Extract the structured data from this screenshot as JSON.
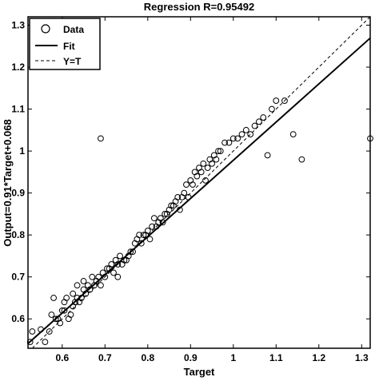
{
  "chart_data": {
    "type": "scatter",
    "title": "Regression R=0.95492",
    "xlabel": "Target",
    "ylabel": "Output=0.91*Target+0.068",
    "xlim": [
      0.52,
      1.32
    ],
    "ylim": [
      0.53,
      1.32
    ],
    "xticks": [
      0.6,
      0.7,
      0.8,
      0.9,
      1,
      1.1,
      1.2,
      1.3
    ],
    "yticks": [
      0.6,
      0.7,
      0.8,
      0.9,
      1,
      1.1,
      1.2,
      1.3
    ],
    "xtick_labels": [
      "0.6",
      "0.7",
      "0.8",
      "0.9",
      "1",
      "1.1",
      "1.2",
      "1.3"
    ],
    "ytick_labels": [
      "0.6",
      "0.7",
      "0.8",
      "0.9",
      "1",
      "1.1",
      "1.2",
      "1.3"
    ],
    "grid": false,
    "legend": {
      "placement": "top-left",
      "entries": [
        {
          "label": "Data",
          "style": "circle"
        },
        {
          "label": "Fit",
          "style": "solid"
        },
        {
          "label": "Y=T",
          "style": "dashed"
        }
      ]
    },
    "fit": {
      "slope": 0.91,
      "intercept": 0.068
    },
    "series": [
      {
        "name": "Data",
        "points": [
          [
            0.525,
            0.545
          ],
          [
            0.53,
            0.57
          ],
          [
            0.55,
            0.575
          ],
          [
            0.56,
            0.545
          ],
          [
            0.57,
            0.57
          ],
          [
            0.575,
            0.61
          ],
          [
            0.58,
            0.65
          ],
          [
            0.585,
            0.6
          ],
          [
            0.59,
            0.6
          ],
          [
            0.595,
            0.59
          ],
          [
            0.6,
            0.62
          ],
          [
            0.605,
            0.62
          ],
          [
            0.605,
            0.64
          ],
          [
            0.61,
            0.65
          ],
          [
            0.615,
            0.6
          ],
          [
            0.62,
            0.61
          ],
          [
            0.625,
            0.63
          ],
          [
            0.625,
            0.66
          ],
          [
            0.63,
            0.64
          ],
          [
            0.635,
            0.65
          ],
          [
            0.635,
            0.68
          ],
          [
            0.64,
            0.64
          ],
          [
            0.645,
            0.65
          ],
          [
            0.65,
            0.67
          ],
          [
            0.65,
            0.69
          ],
          [
            0.655,
            0.66
          ],
          [
            0.66,
            0.68
          ],
          [
            0.665,
            0.67
          ],
          [
            0.67,
            0.7
          ],
          [
            0.675,
            0.68
          ],
          [
            0.68,
            0.69
          ],
          [
            0.685,
            0.7
          ],
          [
            0.69,
            0.68
          ],
          [
            0.695,
            0.71
          ],
          [
            0.7,
            0.7
          ],
          [
            0.705,
            0.72
          ],
          [
            0.71,
            0.72
          ],
          [
            0.715,
            0.73
          ],
          [
            0.72,
            0.71
          ],
          [
            0.725,
            0.74
          ],
          [
            0.73,
            0.7
          ],
          [
            0.73,
            0.73
          ],
          [
            0.735,
            0.75
          ],
          [
            0.74,
            0.73
          ],
          [
            0.745,
            0.74
          ],
          [
            0.75,
            0.74
          ],
          [
            0.755,
            0.75
          ],
          [
            0.76,
            0.76
          ],
          [
            0.765,
            0.76
          ],
          [
            0.77,
            0.78
          ],
          [
            0.775,
            0.79
          ],
          [
            0.78,
            0.8
          ],
          [
            0.785,
            0.78
          ],
          [
            0.79,
            0.8
          ],
          [
            0.795,
            0.8
          ],
          [
            0.8,
            0.81
          ],
          [
            0.805,
            0.79
          ],
          [
            0.81,
            0.82
          ],
          [
            0.815,
            0.84
          ],
          [
            0.82,
            0.82
          ],
          [
            0.825,
            0.83
          ],
          [
            0.83,
            0.84
          ],
          [
            0.835,
            0.83
          ],
          [
            0.84,
            0.85
          ],
          [
            0.845,
            0.85
          ],
          [
            0.85,
            0.86
          ],
          [
            0.855,
            0.87
          ],
          [
            0.86,
            0.87
          ],
          [
            0.865,
            0.88
          ],
          [
            0.87,
            0.89
          ],
          [
            0.875,
            0.86
          ],
          [
            0.88,
            0.89
          ],
          [
            0.885,
            0.9
          ],
          [
            0.89,
            0.92
          ],
          [
            0.895,
            0.89
          ],
          [
            0.9,
            0.93
          ],
          [
            0.905,
            0.92
          ],
          [
            0.91,
            0.95
          ],
          [
            0.915,
            0.94
          ],
          [
            0.92,
            0.96
          ],
          [
            0.925,
            0.95
          ],
          [
            0.93,
            0.97
          ],
          [
            0.935,
            0.93
          ],
          [
            0.94,
            0.96
          ],
          [
            0.945,
            0.98
          ],
          [
            0.95,
            0.97
          ],
          [
            0.955,
            0.99
          ],
          [
            0.96,
            0.98
          ],
          [
            0.965,
            1
          ],
          [
            0.97,
            1
          ],
          [
            0.98,
            1.02
          ],
          [
            0.99,
            1.02
          ],
          [
            1,
            1.03
          ],
          [
            1.01,
            1.03
          ],
          [
            1.02,
            1.04
          ],
          [
            1.03,
            1.05
          ],
          [
            1.04,
            1.04
          ],
          [
            1.05,
            1.06
          ],
          [
            1.06,
            1.07
          ],
          [
            1.07,
            1.08
          ],
          [
            1.08,
            0.99
          ],
          [
            1.09,
            1.1
          ],
          [
            1.1,
            1.12
          ],
          [
            1.12,
            1.12
          ],
          [
            1.14,
            1.04
          ],
          [
            1.16,
            0.98
          ],
          [
            0.69,
            1.03
          ],
          [
            1.32,
            1.03
          ]
        ]
      }
    ]
  }
}
